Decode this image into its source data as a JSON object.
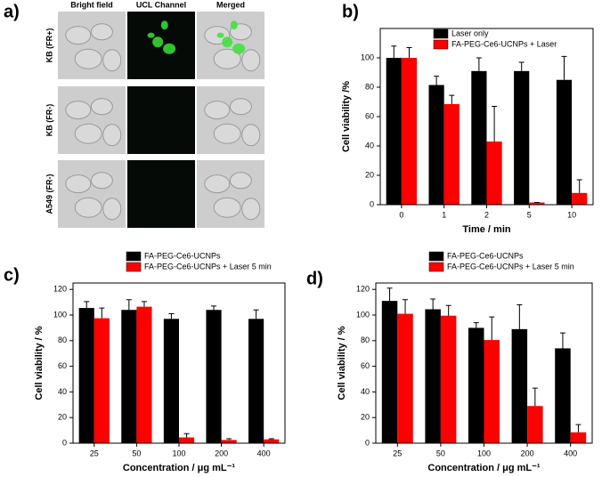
{
  "panel_a": {
    "label": "a)",
    "columns": [
      "Bright field",
      "UCL Channel",
      "Merged"
    ],
    "rows": [
      "KB (FR+)",
      "KB (FR-)",
      "A549 (FR-)"
    ]
  },
  "chart_data": [
    {
      "type": "bar",
      "panel": "b)",
      "categories": [
        "0",
        "1",
        "2",
        "5",
        "10"
      ],
      "series": [
        {
          "name": "Laser only",
          "color": "#000000",
          "values": [
            100,
            81.5,
            91,
            91,
            85
          ],
          "errors": [
            8,
            6,
            9,
            6,
            16
          ]
        },
        {
          "name": "FA-PEG-Ce6-UCNPs + Laser",
          "color": "#ff0000",
          "values": [
            100,
            68.5,
            43,
            1.5,
            8
          ],
          "errors": [
            7,
            6,
            24,
            0,
            9
          ]
        }
      ],
      "ylim": [
        0,
        120
      ],
      "yticks": [
        0,
        20,
        40,
        60,
        80,
        100
      ],
      "y_label": "Cell viability /%",
      "x_label": "Time / min",
      "legend": "inside-top-left"
    },
    {
      "type": "bar",
      "panel": "c)",
      "categories": [
        "25",
        "50",
        "100",
        "200",
        "400"
      ],
      "series": [
        {
          "name": "FA-PEG-Ce6-UCNPs",
          "color": "#000000",
          "values": [
            105.5,
            104,
            97,
            104,
            97
          ],
          "errors": [
            5,
            8,
            4,
            3,
            7
          ]
        },
        {
          "name": "FA-PEG-Ce6-UCNPs + Laser 5 min",
          "color": "#ff0000",
          "values": [
            97.5,
            106.5,
            4.5,
            2.5,
            3
          ],
          "errors": [
            8,
            4,
            3,
            1,
            0.5
          ]
        }
      ],
      "ylim": [
        0,
        125
      ],
      "yticks": [
        0,
        20,
        40,
        60,
        80,
        100,
        120
      ],
      "y_label": "Cell viability / %",
      "x_label": "Concentration / μg mL⁻¹",
      "legend": "above"
    },
    {
      "type": "bar",
      "panel": "d)",
      "categories": [
        "25",
        "50",
        "100",
        "200",
        "400"
      ],
      "series": [
        {
          "name": "FA-PEG-Ce6-UCNPs",
          "color": "#000000",
          "values": [
            111,
            104.5,
            90,
            89,
            74
          ],
          "errors": [
            10,
            8,
            4,
            19,
            12
          ]
        },
        {
          "name": "FA-PEG-Ce6-UCNPs + Laser 5 min",
          "color": "#ff0000",
          "values": [
            101,
            99.5,
            80.5,
            29,
            8.5
          ],
          "errors": [
            11,
            8,
            18,
            14,
            6
          ]
        }
      ],
      "ylim": [
        0,
        125
      ],
      "yticks": [
        0,
        20,
        40,
        60,
        80,
        100,
        120
      ],
      "y_label": "Cell viability / %",
      "x_label": "Concentration / μg mL⁻¹",
      "legend": "above"
    }
  ]
}
